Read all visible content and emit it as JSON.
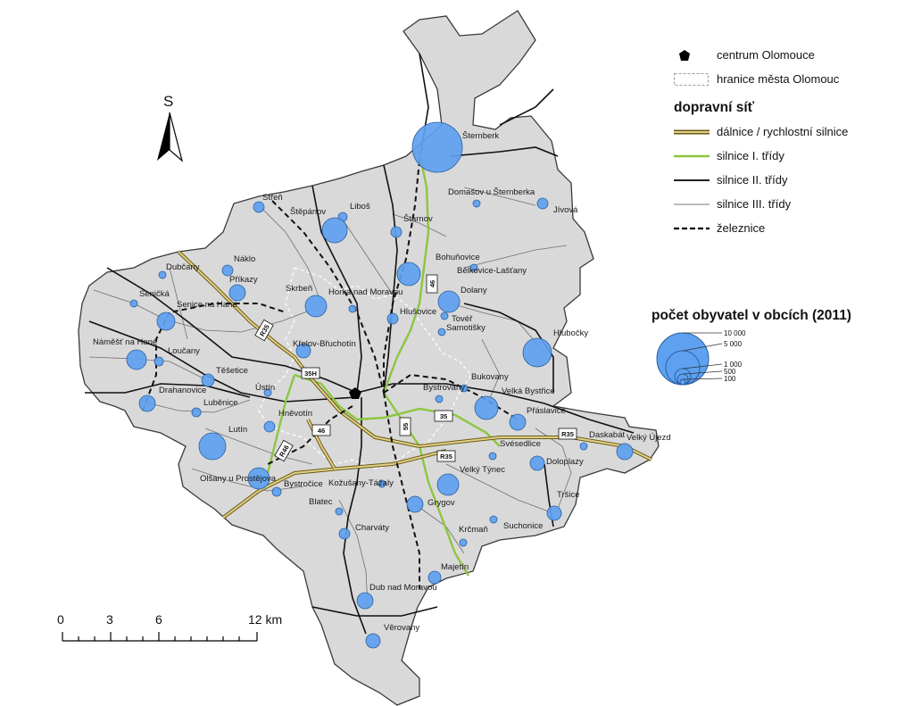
{
  "north_arrow": {
    "letter": "S"
  },
  "legend": {
    "items_general": [
      {
        "symbol": "pentagon-icon",
        "label": "centrum Olomouce"
      },
      {
        "symbol": "dashed-box",
        "label": "hranice města Olomouc"
      }
    ],
    "network_heading": "dopravní síť",
    "network_items": [
      {
        "symbol": "motorway-line",
        "label": "dálnice / rychlostní silnice",
        "color": "#9a8a2e"
      },
      {
        "symbol": "class1-line",
        "label": "silnice I. třídy",
        "color": "#8cc63f"
      },
      {
        "symbol": "class2-line",
        "label": "silnice II. třídy",
        "color": "#000000"
      },
      {
        "symbol": "class3-line",
        "label": "silnice III. třídy",
        "color": "#777777"
      },
      {
        "symbol": "railway-line",
        "label": "železnice",
        "color": "#000000"
      }
    ],
    "population_heading": "počet obyvatel v obcích (2011)",
    "population_classes": [
      "10 000",
      "5 000",
      "1 000",
      "500",
      "100"
    ]
  },
  "scale_bar": {
    "labels": [
      "0",
      "3",
      "6",
      "12 km"
    ]
  },
  "colors": {
    "region_fill": "#d9d9d9",
    "town_circle": "#5ea1f0",
    "class1_road": "#8cc63f",
    "motorway": "#c8b560"
  },
  "road_signs": [
    "R35",
    "35H",
    "46",
    "46",
    "55",
    "35",
    "R35",
    "R46",
    "R35",
    "35H"
  ],
  "towns": [
    "Šternberk",
    "Domašov u Šternberka",
    "Jívová",
    "Střeň",
    "Štěpánov",
    "Liboš",
    "Štarnov",
    "Dubčany",
    "Náklo",
    "Příkazy",
    "Bohuňovice",
    "Bělkovice-Lašťany",
    "Seničká",
    "Skrbeň",
    "Horka nad Moravou",
    "Senice na Hané",
    "Dolany",
    "Hlušovice",
    "Tovéř",
    "Samotišky",
    "Hlubočky",
    "Náměšť na Hané",
    "Loučany",
    "Křelov-Břuchotín",
    "Těšetice",
    "Bukovany",
    "Drahanovice",
    "Ústín",
    "Bystrovany",
    "Velká Bystřice",
    "Luběnice",
    "Přáslavice",
    "Hněvotín",
    "Lutín",
    "Svésedlice",
    "Daskabát",
    "Velký Újezd",
    "Doloplazy",
    "Olšany u Prostějova",
    "Bystročice",
    "Kožušany-Tážaly",
    "Velký Týnec",
    "Tršice",
    "Blatec",
    "Grygov",
    "Suchonice",
    "Charváty",
    "Krčmaň",
    "Majetín",
    "Dub nad Moravou",
    "Věrovany"
  ]
}
